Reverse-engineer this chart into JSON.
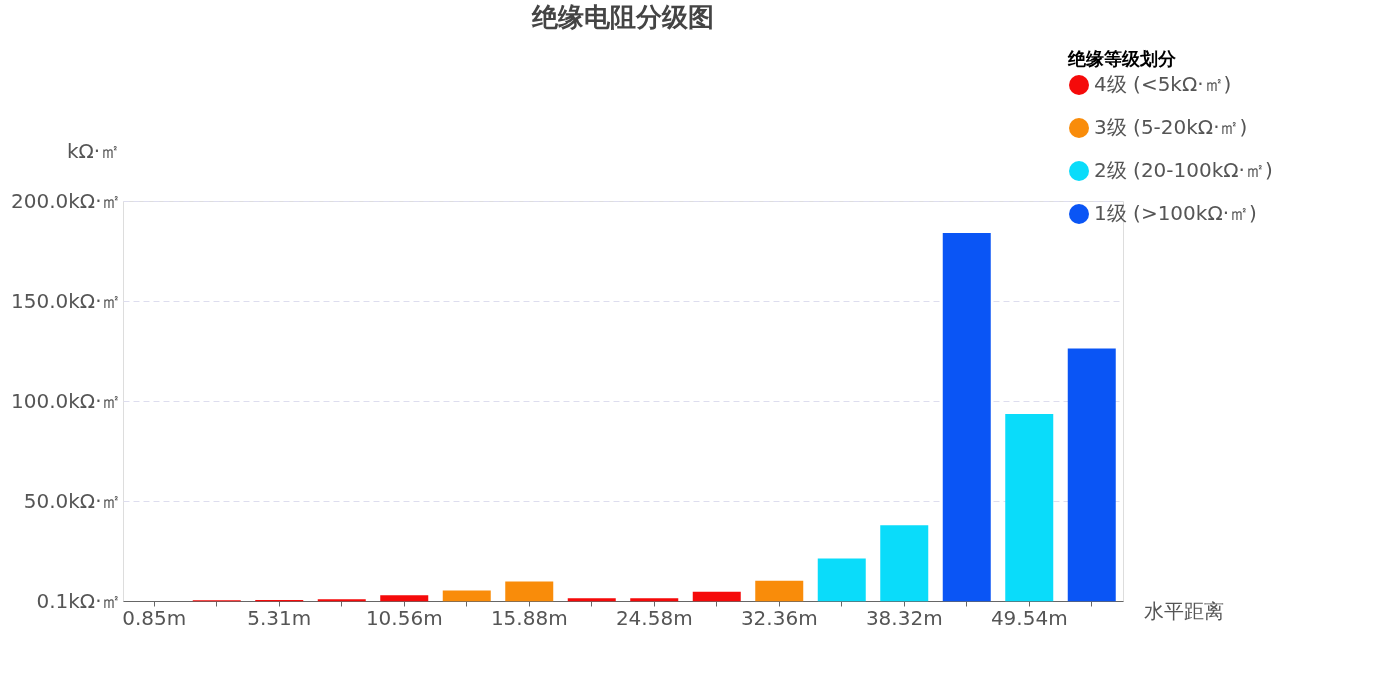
{
  "chart_data": {
    "type": "bar",
    "title": "绝缘电阻分级图",
    "xlabel": "水平距离",
    "ylabel": "kΩ·㎡",
    "legend_title": "绝缘等级划分",
    "categories": [
      "0.85m",
      null,
      "5.31m",
      null,
      "10.56m",
      null,
      "15.88m",
      null,
      "24.58m",
      null,
      "32.36m",
      null,
      "38.32m",
      null,
      "49.54m",
      null
    ],
    "series": [
      {
        "name": "4级 (<5kΩ·㎡)",
        "color": "#f50a0a",
        "values": [
          null,
          0.5,
          0.6,
          1,
          3,
          null,
          null,
          1.5,
          1.5,
          4.7,
          null,
          null,
          null,
          null,
          null,
          null
        ]
      },
      {
        "name": "3级 (5-20kΩ·㎡)",
        "color": "#f98c0a",
        "values": [
          null,
          null,
          null,
          null,
          null,
          5.3,
          9.8,
          null,
          null,
          null,
          10.2,
          null,
          null,
          null,
          null,
          null
        ]
      },
      {
        "name": "2级 (20-100kΩ·㎡)",
        "color": "#0adcfa",
        "values": [
          null,
          null,
          null,
          null,
          null,
          null,
          null,
          null,
          null,
          null,
          null,
          21.3,
          38,
          null,
          93.6,
          null
        ]
      },
      {
        "name": "1级 (>100kΩ·㎡)",
        "color": "#0a55f5",
        "values": [
          null,
          null,
          null,
          null,
          null,
          null,
          null,
          null,
          null,
          null,
          null,
          null,
          null,
          184,
          null,
          126.3
        ]
      }
    ],
    "ylim": [
      0.1,
      200
    ],
    "yticks": [
      {
        "value": 0.1,
        "label": "0.1kΩ·㎡"
      },
      {
        "value": 50,
        "label": "50.0kΩ·㎡"
      },
      {
        "value": 100,
        "label": "100.0kΩ·㎡"
      },
      {
        "value": 150,
        "label": "150.0kΩ·㎡"
      },
      {
        "value": 200,
        "label": "200.0kΩ·㎡"
      }
    ],
    "grid": "y",
    "legend": "top right"
  }
}
